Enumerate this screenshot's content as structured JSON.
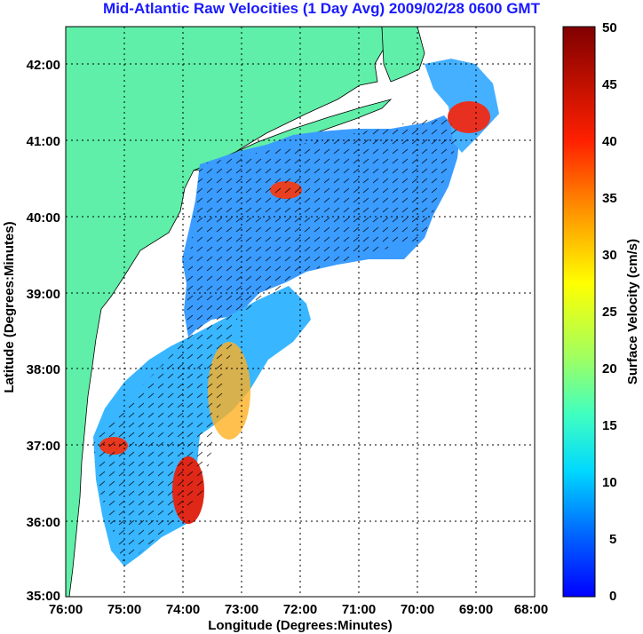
{
  "title": "Mid-Atlantic Raw Velocities (1 Day Avg) 2009/02/28 0600 GMT",
  "map": {
    "xlabel": "Longitude (Degrees:Minutes)",
    "ylabel": "Latitude (Degrees:Minutes)",
    "x_ticks": [
      "76:00",
      "75:00",
      "74:00",
      "73:00",
      "72:00",
      "71:00",
      "70:00",
      "69:00",
      "68:00"
    ],
    "y_ticks": [
      "42:00",
      "41:00",
      "40:00",
      "39:00",
      "38:00",
      "37:00",
      "36:00",
      "35:00"
    ],
    "lon_range": [
      -76,
      -68
    ],
    "lat_range": [
      35,
      42.5
    ],
    "land_color": "#5fefa8",
    "ocean_color": "#ffffff"
  },
  "colorbar": {
    "label": "Surface Velocity (cm/s)",
    "ticks": [
      "50",
      "45",
      "40",
      "35",
      "30",
      "25",
      "20",
      "15",
      "10",
      "5",
      "0"
    ],
    "min": 0,
    "max": 50
  }
}
